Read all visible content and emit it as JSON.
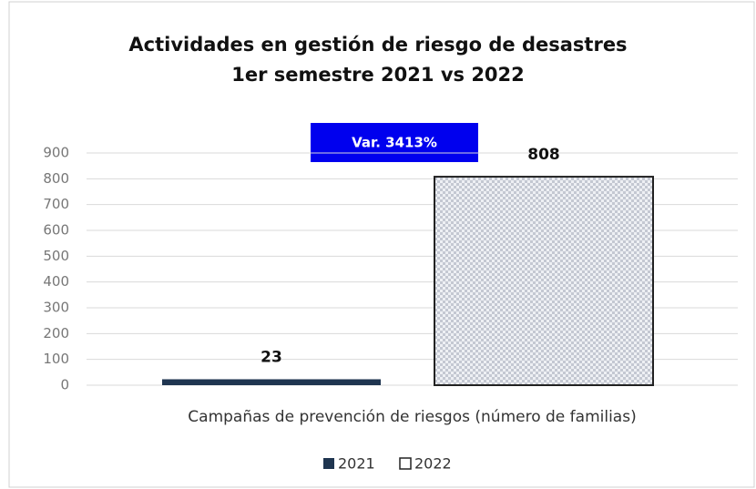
{
  "chart_data": {
    "type": "bar",
    "title": "Actividades en gestión de riesgo de desastres",
    "subtitle": "1er semestre 2021 vs 2022",
    "annotation": "Var. 3413%",
    "categories": [
      "Campañas de prevención de riesgos (número de familias)"
    ],
    "series": [
      {
        "name": "2021",
        "color": "#1f3550",
        "values": [
          23
        ]
      },
      {
        "name": "2022",
        "color": "#d9dce3",
        "values": [
          808
        ]
      }
    ],
    "ylim": [
      0,
      900
    ],
    "yticks": [
      0,
      100,
      200,
      300,
      400,
      500,
      600,
      700,
      800,
      900
    ],
    "grid": true,
    "legend": "bottom"
  }
}
